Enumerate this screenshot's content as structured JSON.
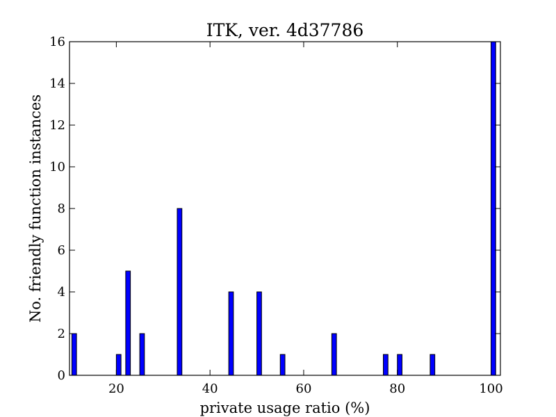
{
  "chart_data": {
    "type": "bar",
    "title": "ITK, ver. 4d37786",
    "xlabel": "private usage ratio (%)",
    "ylabel": "No. friendly function instances",
    "xlim": [
      10,
      102
    ],
    "ylim": [
      0,
      16
    ],
    "xticks": [
      20,
      40,
      60,
      80,
      100
    ],
    "xtick_labels": [
      "20",
      "40",
      "60",
      "80",
      "100"
    ],
    "yticks": [
      0,
      2,
      4,
      6,
      8,
      10,
      12,
      14,
      16
    ],
    "ytick_labels": [
      "0",
      "2",
      "4",
      "6",
      "8",
      "10",
      "12",
      "14",
      "16"
    ],
    "bar_color": "#0000ff",
    "bar_width": 1.0,
    "grid": false,
    "x": [
      11,
      20.5,
      22.5,
      25.5,
      33.5,
      44.5,
      50.5,
      55.5,
      66.5,
      77.5,
      80.5,
      87.5,
      100.5
    ],
    "values": [
      2,
      1,
      5,
      2,
      8,
      4,
      4,
      1,
      2,
      1,
      1,
      1,
      16
    ]
  }
}
